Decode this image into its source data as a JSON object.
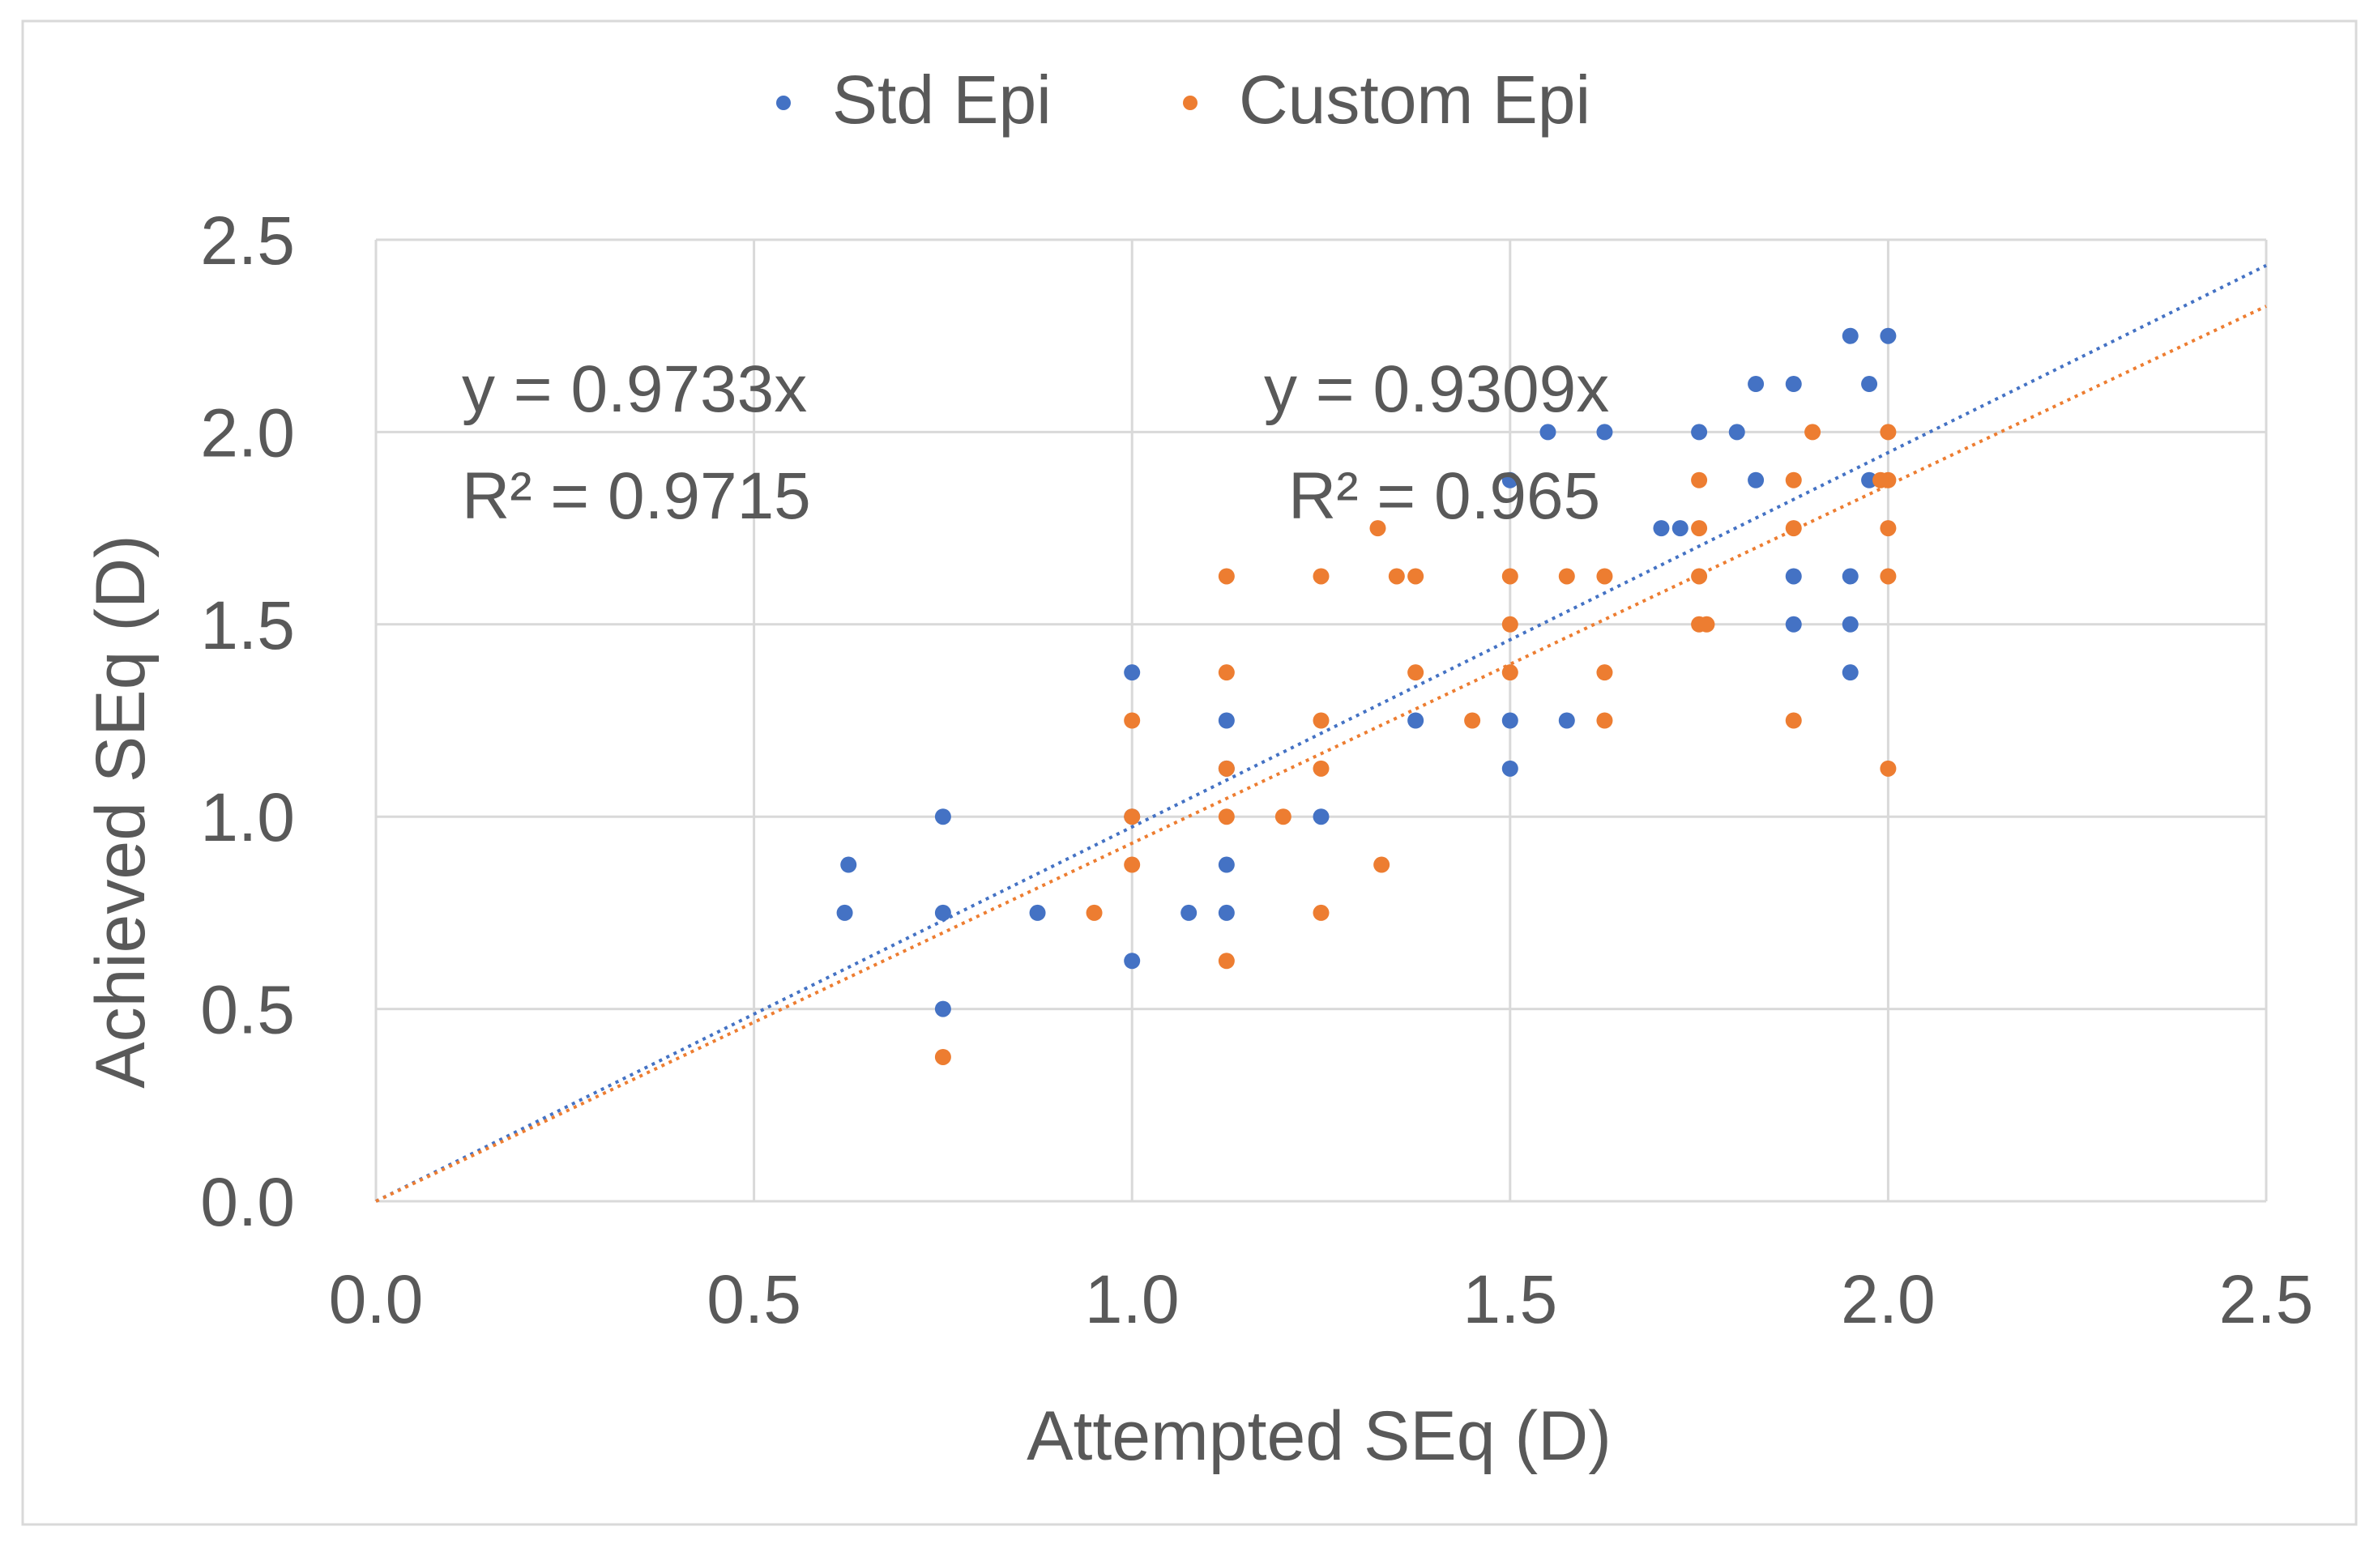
{
  "chart_data": {
    "type": "scatter",
    "title": "",
    "xlabel": "Attempted SEq (D)",
    "ylabel": "Achieved SEq (D)",
    "xlim": [
      0,
      2.5
    ],
    "ylim": [
      0,
      2.5
    ],
    "xticks": [
      "0.0",
      "0.5",
      "1.0",
      "1.5",
      "2.0",
      "2.5"
    ],
    "yticks": [
      "0.0",
      "0.5",
      "1.0",
      "1.5",
      "2.0",
      "2.5"
    ],
    "grid": true,
    "legend_position": "top-center",
    "series": [
      {
        "name": "Std Epi",
        "color": "#4472C4",
        "trendline": {
          "slope": 0.9733,
          "equation": "y = 0.9733x",
          "r2": "R² = 0.9715"
        },
        "points": [
          [
            0.62,
            0.75
          ],
          [
            0.625,
            0.875
          ],
          [
            0.75,
            1.0
          ],
          [
            0.75,
            0.75
          ],
          [
            0.75,
            0.5
          ],
          [
            0.875,
            0.75
          ],
          [
            1.0,
            1.375
          ],
          [
            1.0,
            1.0
          ],
          [
            1.0,
            0.625
          ],
          [
            1.075,
            0.75
          ],
          [
            1.125,
            1.25
          ],
          [
            1.125,
            1.125
          ],
          [
            1.125,
            0.875
          ],
          [
            1.125,
            0.75
          ],
          [
            1.25,
            1.0
          ],
          [
            1.375,
            1.25
          ],
          [
            1.5,
            1.875
          ],
          [
            1.5,
            1.25
          ],
          [
            1.5,
            1.125
          ],
          [
            1.55,
            2.0
          ],
          [
            1.575,
            1.25
          ],
          [
            1.625,
            2.0
          ],
          [
            1.7,
            1.75
          ],
          [
            1.725,
            1.75
          ],
          [
            1.75,
            2.0
          ],
          [
            1.8,
            2.0
          ],
          [
            1.825,
            2.125
          ],
          [
            1.825,
            1.875
          ],
          [
            1.875,
            2.125
          ],
          [
            1.875,
            1.625
          ],
          [
            1.875,
            1.5
          ],
          [
            1.95,
            2.25
          ],
          [
            1.95,
            1.625
          ],
          [
            1.95,
            1.5
          ],
          [
            1.95,
            1.375
          ],
          [
            1.975,
            2.125
          ],
          [
            1.975,
            1.875
          ],
          [
            2.0,
            2.25
          ]
        ]
      },
      {
        "name": "Custom Epi",
        "color": "#ED7D31",
        "trendline": {
          "slope": 0.9309,
          "equation": "y = 0.9309x",
          "r2": "R² = 0.965"
        },
        "points": [
          [
            0.75,
            0.375
          ],
          [
            0.95,
            0.75
          ],
          [
            1.0,
            1.25
          ],
          [
            1.0,
            1.0
          ],
          [
            1.0,
            0.875
          ],
          [
            1.125,
            1.625
          ],
          [
            1.125,
            1.375
          ],
          [
            1.125,
            1.125
          ],
          [
            1.125,
            1.0
          ],
          [
            1.125,
            0.625
          ],
          [
            1.2,
            1.0
          ],
          [
            1.25,
            1.625
          ],
          [
            1.25,
            1.25
          ],
          [
            1.25,
            1.125
          ],
          [
            1.25,
            0.75
          ],
          [
            1.325,
            1.75
          ],
          [
            1.33,
            0.875
          ],
          [
            1.35,
            1.625
          ],
          [
            1.375,
            1.625
          ],
          [
            1.375,
            1.375
          ],
          [
            1.45,
            1.25
          ],
          [
            1.5,
            1.625
          ],
          [
            1.5,
            1.5
          ],
          [
            1.5,
            1.375
          ],
          [
            1.575,
            1.625
          ],
          [
            1.625,
            1.625
          ],
          [
            1.625,
            1.375
          ],
          [
            1.625,
            1.25
          ],
          [
            1.75,
            1.875
          ],
          [
            1.75,
            1.75
          ],
          [
            1.75,
            1.625
          ],
          [
            1.75,
            1.5
          ],
          [
            1.76,
            1.5
          ],
          [
            1.875,
            1.875
          ],
          [
            1.875,
            1.75
          ],
          [
            1.875,
            1.25
          ],
          [
            1.9,
            2.0
          ],
          [
            2.0,
            2.0
          ],
          [
            2.0,
            1.875
          ],
          [
            1.99,
            1.875
          ],
          [
            2.0,
            1.75
          ],
          [
            2.0,
            1.625
          ],
          [
            2.0,
            1.125
          ]
        ]
      }
    ]
  }
}
